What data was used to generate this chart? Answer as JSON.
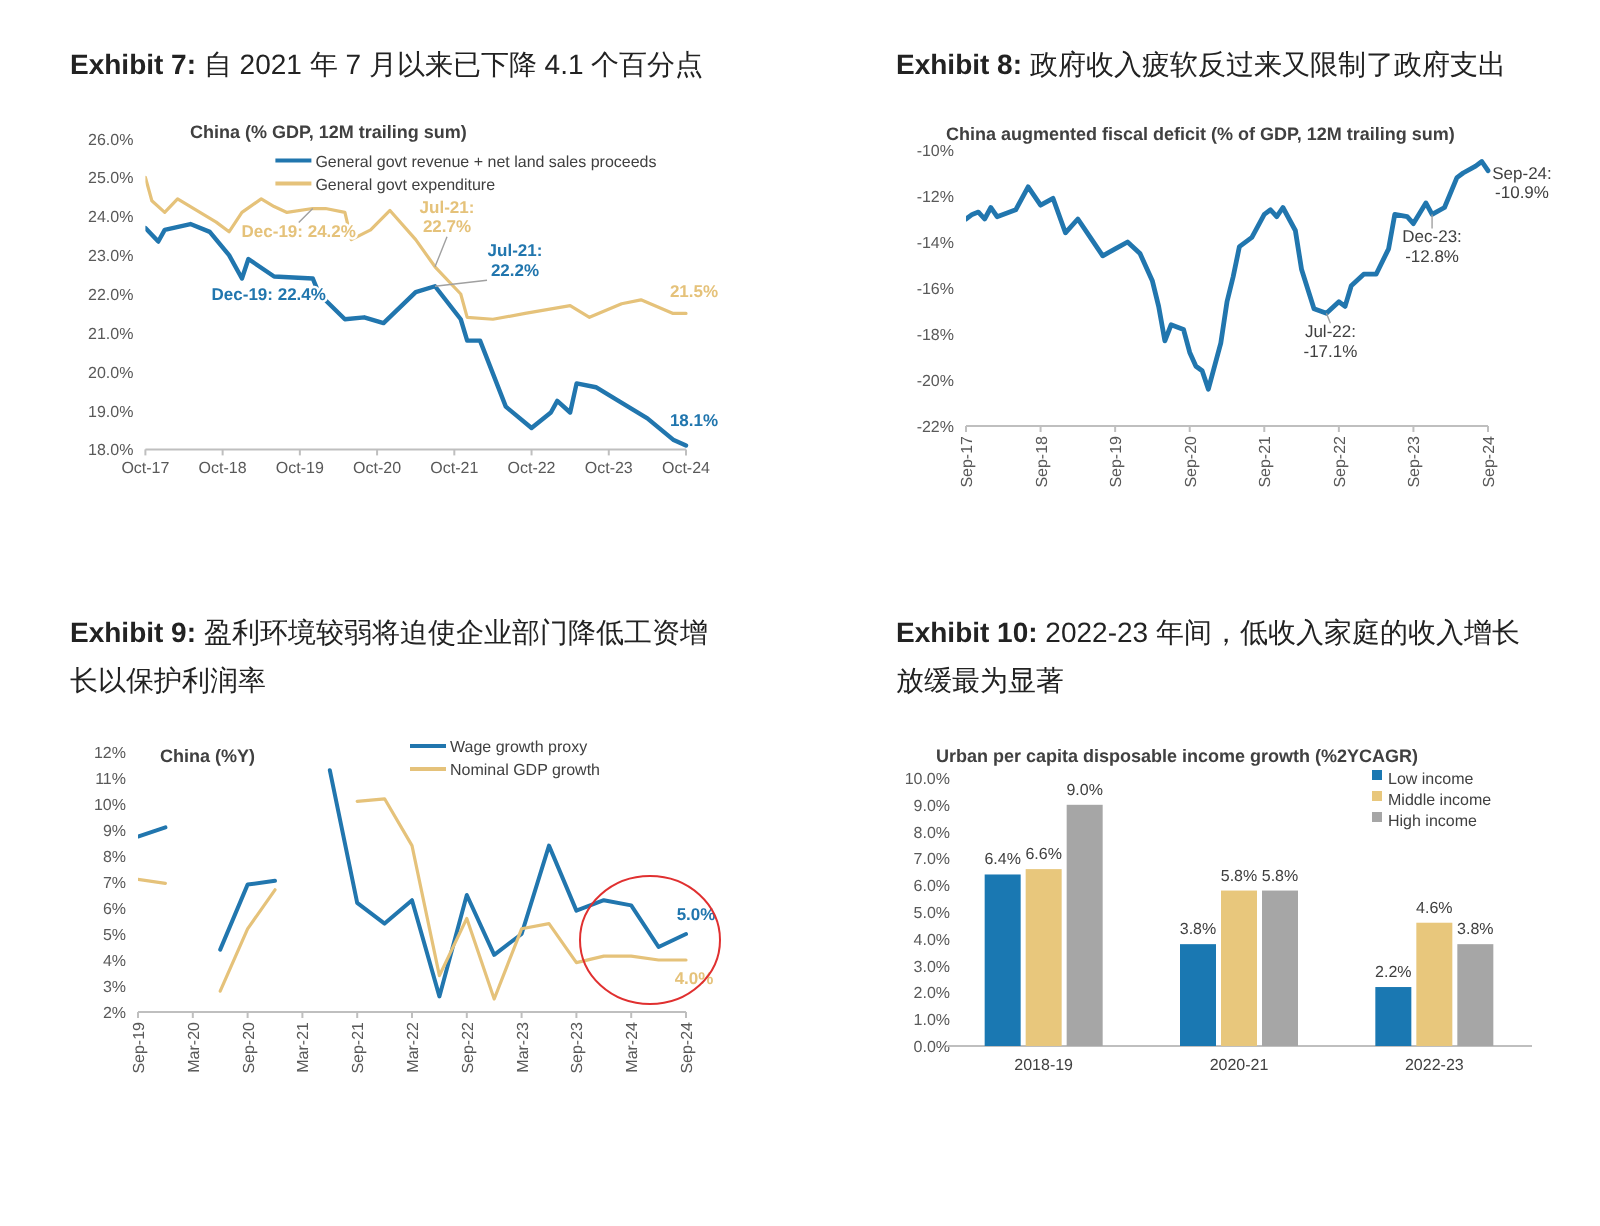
{
  "chart_data": [
    {
      "type": "line",
      "title": "Exhibit 7: 自 2021 年 7 月以来已下降 4.1 个百分点",
      "subtitle": "China (% GDP, 12M trailing sum)",
      "legend": "top",
      "xlim": [
        "2017-10",
        "2024-10"
      ],
      "xticks": [
        {
          "value": "2017-10",
          "label": "Oct-17"
        },
        {
          "value": "2018-10",
          "label": "Oct-18"
        },
        {
          "value": "2019-10",
          "label": "Oct-19"
        },
        {
          "value": "2020-10",
          "label": "Oct-20"
        },
        {
          "value": "2021-10",
          "label": "Oct-21"
        },
        {
          "value": "2022-10",
          "label": "Oct-22"
        },
        {
          "value": "2023-10",
          "label": "Oct-23"
        },
        {
          "value": "2024-10",
          "label": "Oct-24"
        }
      ],
      "ylim": [
        18,
        26
      ],
      "yticks": [
        {
          "value": 18,
          "label": "18.0%"
        },
        {
          "value": 19,
          "label": "19.0%"
        },
        {
          "value": 20,
          "label": "20.0%"
        },
        {
          "value": 21,
          "label": "21.0%"
        },
        {
          "value": 22,
          "label": "22.0%"
        },
        {
          "value": 23,
          "label": "23.0%"
        },
        {
          "value": 24,
          "label": "24.0%"
        },
        {
          "value": 25,
          "label": "25.0%"
        },
        {
          "value": 26,
          "label": "26.0%"
        }
      ],
      "series": [
        {
          "name": "General govt revenue + net land sales proceeds",
          "color": "#2176ae",
          "x": [
            "2017-10",
            "2017-12",
            "2018-01",
            "2018-05",
            "2018-08",
            "2018-11",
            "2019-01",
            "2019-02",
            "2019-06",
            "2019-12",
            "2020-01",
            "2020-05",
            "2020-08",
            "2020-11",
            "2021-04",
            "2021-07",
            "2021-11",
            "2021-12",
            "2022-02",
            "2022-06",
            "2022-10",
            "2023-01",
            "2023-02",
            "2023-04",
            "2023-05",
            "2023-08",
            "2023-11",
            "2024-04",
            "2024-08",
            "2024-10"
          ],
          "values": [
            23.7,
            23.35,
            23.65,
            23.8,
            23.6,
            23.0,
            22.4,
            22.9,
            22.45,
            22.4,
            22.0,
            21.35,
            21.4,
            21.25,
            22.05,
            22.2,
            21.35,
            20.8,
            20.8,
            19.1,
            18.55,
            18.95,
            19.25,
            18.95,
            19.7,
            19.6,
            19.3,
            18.8,
            18.25,
            18.1
          ]
        },
        {
          "name": "General govt expenditure",
          "color": "#e5c27a",
          "x": [
            "2017-10",
            "2017-11",
            "2018-01",
            "2018-03",
            "2018-05",
            "2018-09",
            "2018-11",
            "2019-01",
            "2019-04",
            "2019-06",
            "2019-08",
            "2019-12",
            "2020-02",
            "2020-05",
            "2020-06",
            "2020-09",
            "2020-12",
            "2021-04",
            "2021-07",
            "2021-11",
            "2021-12",
            "2022-04",
            "2022-09",
            "2023-04",
            "2023-07",
            "2023-12",
            "2024-03",
            "2024-08",
            "2024-10"
          ],
          "values": [
            25.0,
            24.4,
            24.1,
            24.45,
            24.25,
            23.85,
            23.6,
            24.1,
            24.45,
            24.25,
            24.1,
            24.2,
            24.2,
            24.1,
            23.4,
            23.65,
            24.15,
            23.4,
            22.7,
            22.0,
            21.4,
            21.35,
            21.5,
            21.7,
            21.4,
            21.75,
            21.85,
            21.5,
            21.5
          ]
        }
      ],
      "annotations": [
        {
          "text": "Dec-19: 24.2%",
          "x": "2019-12",
          "y": 24.2
        },
        {
          "text": "Dec-19: 22.4%",
          "x": "2019-12",
          "y": 22.4
        },
        {
          "text": "Jul-21: 22.7%",
          "x": "2021-07",
          "y": 22.7
        },
        {
          "text": "Jul-21: 22.2%",
          "x": "2021-07",
          "y": 22.2
        },
        {
          "text": "21.5%",
          "x": "2024-10",
          "y": 21.5
        },
        {
          "text": "18.1%",
          "x": "2024-10",
          "y": 18.1
        }
      ]
    },
    {
      "type": "line",
      "title": "Exhibit 8: 政府收入疲软反过来又限制了政府支出",
      "subtitle": "China augmented fiscal deficit (% of GDP, 12M trailing sum)",
      "xlim": [
        "2017-09",
        "2024-09"
      ],
      "xticks": [
        {
          "value": "2017-09",
          "label": "Sep-17"
        },
        {
          "value": "2018-09",
          "label": "Sep-18"
        },
        {
          "value": "2019-09",
          "label": "Sep-19"
        },
        {
          "value": "2020-09",
          "label": "Sep-20"
        },
        {
          "value": "2021-09",
          "label": "Sep-21"
        },
        {
          "value": "2022-09",
          "label": "Sep-22"
        },
        {
          "value": "2023-09",
          "label": "Sep-23"
        },
        {
          "value": "2024-09",
          "label": "Sep-24"
        }
      ],
      "ylim": [
        -22,
        -10
      ],
      "yticks": [
        {
          "value": -22,
          "label": "-22%"
        },
        {
          "value": -20,
          "label": "-20%"
        },
        {
          "value": -18,
          "label": "-18%"
        },
        {
          "value": -16,
          "label": "-16%"
        },
        {
          "value": -14,
          "label": "-14%"
        },
        {
          "value": -12,
          "label": "-12%"
        },
        {
          "value": -10,
          "label": "-10%"
        }
      ],
      "series": [
        {
          "color": "#2176ae",
          "x": [
            "2017-09",
            "2017-10",
            "2017-11",
            "2017-12",
            "2018-01",
            "2018-02",
            "2018-05",
            "2018-07",
            "2018-09",
            "2018-11",
            "2019-01",
            "2019-03",
            "2019-05",
            "2019-07",
            "2019-09",
            "2019-11",
            "2020-01",
            "2020-03",
            "2020-04",
            "2020-05",
            "2020-06",
            "2020-08",
            "2020-09",
            "2020-10",
            "2020-11",
            "2020-12",
            "2021-02",
            "2021-03",
            "2021-04",
            "2021-05",
            "2021-07",
            "2021-09",
            "2021-10",
            "2021-11",
            "2021-12",
            "2022-02",
            "2022-03",
            "2022-05",
            "2022-07",
            "2022-09",
            "2022-10",
            "2022-11",
            "2023-01",
            "2023-03",
            "2023-05",
            "2023-06",
            "2023-08",
            "2023-09",
            "2023-11",
            "2023-12",
            "2024-02",
            "2024-04",
            "2024-05",
            "2024-07",
            "2024-08",
            "2024-09"
          ],
          "values": [
            -13.0,
            -12.8,
            -12.7,
            -13.0,
            -12.5,
            -12.9,
            -12.6,
            -11.6,
            -12.4,
            -12.1,
            -13.6,
            -13.0,
            -13.8,
            -14.6,
            -14.3,
            -14.0,
            -14.5,
            -15.7,
            -16.8,
            -18.3,
            -17.6,
            -17.8,
            -18.8,
            -19.4,
            -19.6,
            -20.4,
            -18.4,
            -16.6,
            -15.5,
            -14.2,
            -13.8,
            -12.8,
            -12.6,
            -12.9,
            -12.5,
            -13.5,
            -15.2,
            -16.9,
            -17.1,
            -16.6,
            -16.8,
            -15.9,
            -15.4,
            -15.4,
            -14.3,
            -12.8,
            -12.9,
            -13.2,
            -12.3,
            -12.8,
            -12.5,
            -11.2,
            -11.0,
            -10.7,
            -10.5,
            -10.9
          ]
        }
      ],
      "annotations": [
        {
          "text": "Sep-24: -10.9%",
          "x": "2024-09",
          "y": -10.9
        },
        {
          "text": "Dec-23: -12.8%",
          "x": "2023-12",
          "y": -12.8
        },
        {
          "text": "Jul-22: -17.1%",
          "x": "2022-07",
          "y": -17.1
        }
      ]
    },
    {
      "type": "line",
      "title": "Exhibit 9: 盈利环境较弱将迫使企业部门降低工资增长以保护利润率",
      "subtitle": "China (%Y)",
      "legend": "top",
      "xlim": [
        "2019-09",
        "2024-09"
      ],
      "xticks": [
        {
          "value": "2019-09",
          "label": "Sep-19"
        },
        {
          "value": "2020-03",
          "label": "Mar-20"
        },
        {
          "value": "2020-09",
          "label": "Sep-20"
        },
        {
          "value": "2021-03",
          "label": "Mar-21"
        },
        {
          "value": "2021-09",
          "label": "Sep-21"
        },
        {
          "value": "2022-03",
          "label": "Mar-22"
        },
        {
          "value": "2022-09",
          "label": "Sep-22"
        },
        {
          "value": "2023-03",
          "label": "Mar-23"
        },
        {
          "value": "2023-09",
          "label": "Sep-23"
        },
        {
          "value": "2024-03",
          "label": "Mar-24"
        },
        {
          "value": "2024-09",
          "label": "Sep-24"
        }
      ],
      "ylim": [
        2,
        12
      ],
      "yticks": [
        {
          "value": 2,
          "label": "2%"
        },
        {
          "value": 3,
          "label": "3%"
        },
        {
          "value": 4,
          "label": "4%"
        },
        {
          "value": 5,
          "label": "5%"
        },
        {
          "value": 6,
          "label": "6%"
        },
        {
          "value": 7,
          "label": "7%"
        },
        {
          "value": 8,
          "label": "8%"
        },
        {
          "value": 9,
          "label": "9%"
        },
        {
          "value": 10,
          "label": "10%"
        },
        {
          "value": 11,
          "label": "11%"
        },
        {
          "value": 12,
          "label": "12%"
        }
      ],
      "x": [
        "2019-09",
        "2019-12",
        "2020-03",
        "2020-06",
        "2020-09",
        "2020-12",
        "2021-03",
        "2021-06",
        "2021-09",
        "2021-12",
        "2022-03",
        "2022-06",
        "2022-09",
        "2022-12",
        "2023-03",
        "2023-06",
        "2023-09",
        "2023-12",
        "2024-03",
        "2024-06",
        "2024-09"
      ],
      "series": [
        {
          "name": "Wage growth proxy",
          "color": "#2176ae",
          "values": [
            8.75,
            9.1,
            null,
            4.4,
            6.9,
            7.05,
            null,
            11.3,
            6.2,
            5.4,
            6.3,
            2.6,
            6.5,
            4.2,
            5.0,
            8.4,
            5.9,
            6.3,
            6.1,
            4.5,
            5.0
          ]
        },
        {
          "name": "Nominal GDP growth",
          "color": "#e5c27a",
          "values": [
            7.1,
            6.95,
            null,
            2.8,
            5.2,
            6.7,
            null,
            null,
            10.1,
            10.2,
            8.4,
            3.4,
            5.6,
            2.5,
            5.2,
            5.4,
            3.9,
            4.15,
            4.15,
            4.0,
            4.0
          ]
        }
      ],
      "annotations": [
        {
          "text": "5.0%",
          "x": "2024-09",
          "y": 5.0
        },
        {
          "text": "4.0%",
          "x": "2024-09",
          "y": 4.0
        }
      ]
    },
    {
      "type": "bar",
      "title": "Exhibit 10: 2022-23 年间，低收入家庭的收入增长放缓最为显著",
      "subtitle": "Urban per capita disposable income growth (%2YCAGR)",
      "legend": "top right",
      "categories": [
        "2018-19",
        "2020-21",
        "2022-23"
      ],
      "ylim": [
        0,
        10
      ],
      "yticks": [
        {
          "value": 0,
          "label": "0.0%"
        },
        {
          "value": 1,
          "label": "1.0%"
        },
        {
          "value": 2,
          "label": "2.0%"
        },
        {
          "value": 3,
          "label": "3.0%"
        },
        {
          "value": 4,
          "label": "4.0%"
        },
        {
          "value": 5,
          "label": "5.0%"
        },
        {
          "value": 6,
          "label": "6.0%"
        },
        {
          "value": 7,
          "label": "7.0%"
        },
        {
          "value": 8,
          "label": "8.0%"
        },
        {
          "value": 9,
          "label": "9.0%"
        },
        {
          "value": 10,
          "label": "10.0%"
        }
      ],
      "series": [
        {
          "name": "Low income",
          "color": "#1a78b2",
          "values": [
            6.4,
            3.8,
            2.2
          ],
          "value_labels": [
            "6.4%",
            "3.8%",
            "2.2%"
          ]
        },
        {
          "name": "Middle income",
          "color": "#e8c77c",
          "values": [
            6.6,
            5.8,
            4.6
          ],
          "value_labels": [
            "6.6%",
            "5.8%",
            "4.6%"
          ]
        },
        {
          "name": "High income",
          "color": "#a6a6a6",
          "values": [
            9.0,
            5.8,
            3.8
          ],
          "value_labels": [
            "9.0%",
            "5.8%",
            "3.8%"
          ]
        }
      ]
    }
  ]
}
